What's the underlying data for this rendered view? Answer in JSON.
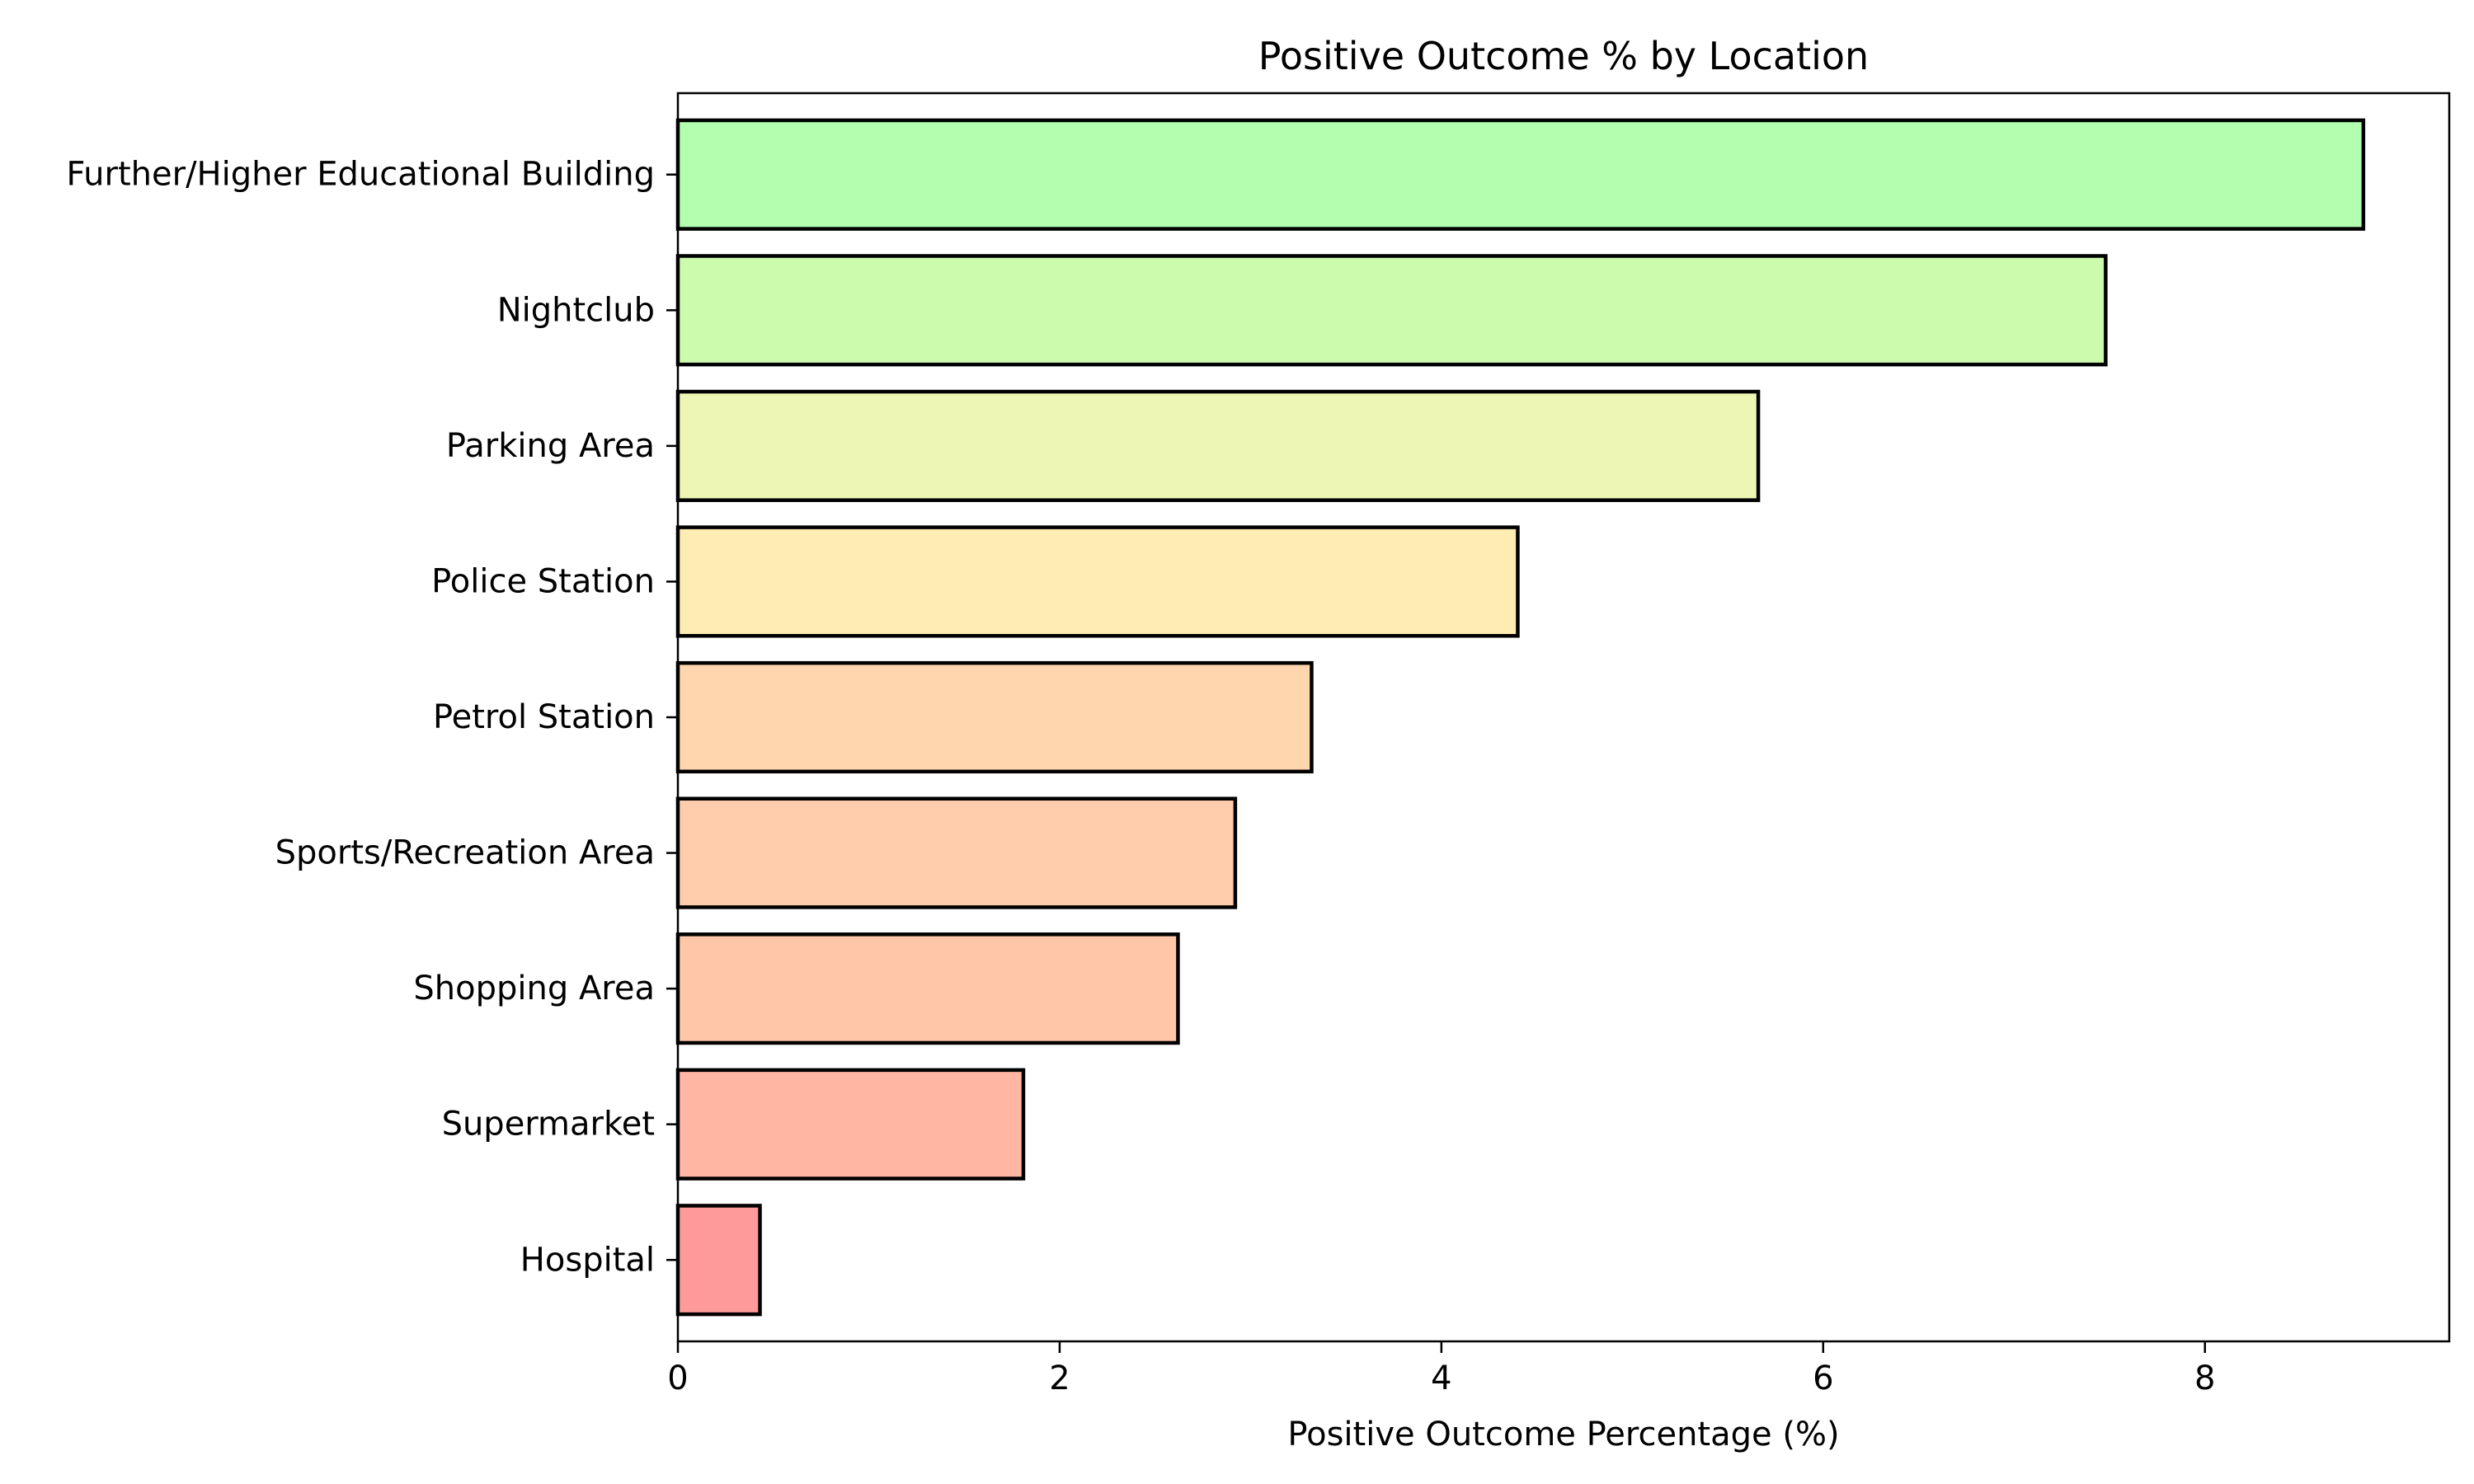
{
  "chart_data": {
    "type": "bar",
    "orientation": "horizontal",
    "title": "Positive Outcome % by Location",
    "xlabel": "Positive Outcome Percentage (%)",
    "ylabel": "",
    "xlim": [
      0,
      9.28
    ],
    "xticks": [
      0,
      2,
      4,
      6,
      8
    ],
    "grid": false,
    "legend": null,
    "categories": [
      "Further/Higher Educational Building",
      "Nightclub",
      "Parking Area",
      "Police Station",
      "Petrol Station",
      "Sports/Recreation Area",
      "Shopping Area",
      "Supermarket",
      "Hospital"
    ],
    "values": [
      8.83,
      7.48,
      5.66,
      4.4,
      3.32,
      2.92,
      2.62,
      1.81,
      0.43
    ],
    "colors": [
      "#b3ffb0",
      "#cdfbae",
      "#eef6b3",
      "#ffecb3",
      "#ffd6ad",
      "#ffcdab",
      "#ffc6a7",
      "#ffb6a2",
      "#ff9a9a"
    ],
    "bar_edge_color": "#000000"
  }
}
